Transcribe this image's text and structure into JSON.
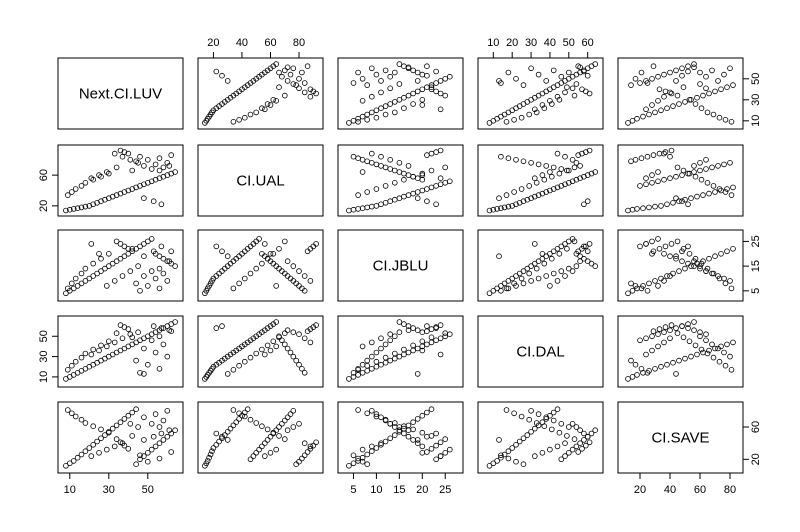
{
  "chart_data": {
    "type": "scatter",
    "variables": [
      "Next.CI.LUV",
      "CI.UAL",
      "CI.JBLU",
      "CI.DAL",
      "CI.SAVE"
    ],
    "ranges": [
      [
        6,
        66
      ],
      [
        12,
        94
      ],
      [
        2.5,
        28
      ],
      [
        4,
        66
      ],
      [
        8,
        86
      ]
    ],
    "ticks": [
      [
        10,
        30,
        50
      ],
      [
        20,
        40,
        60,
        80
      ],
      [
        5,
        10,
        15,
        20,
        25
      ],
      [
        10,
        20,
        30,
        40,
        50,
        60
      ],
      [
        20,
        40,
        60,
        80
      ]
    ],
    "axis_ticks": {
      "bottom": [
        {
          "var": 0,
          "values": [
            "10",
            "30",
            "50"
          ]
        },
        {
          "var": 2,
          "values": [
            "5",
            "10",
            "15",
            "20",
            "25"
          ]
        },
        {
          "var": 4,
          "values": [
            "20",
            "40",
            "60",
            "80"
          ]
        }
      ],
      "top": [
        {
          "var": 1,
          "values": [
            "20",
            "40",
            "60",
            "80"
          ]
        },
        {
          "var": 3,
          "values": [
            "10",
            "20",
            "30",
            "40",
            "50",
            "60"
          ]
        }
      ],
      "left": [
        {
          "var": 1,
          "values": [
            "20",
            "60"
          ]
        },
        {
          "var": 3,
          "values": [
            "10",
            "30",
            "50"
          ]
        }
      ],
      "right": [
        {
          "var": 0,
          "values": [
            "10",
            "30",
            "50"
          ]
        },
        {
          "var": 2,
          "values": [
            "5",
            "15",
            "25"
          ]
        },
        {
          "var": 4,
          "values": [
            "20",
            "60"
          ]
        }
      ]
    },
    "series": [
      {
        "name": "Next.CI.LUV",
        "values": [
          8,
          10,
          12,
          14,
          16,
          18,
          20,
          22,
          24,
          26,
          28,
          30,
          32,
          34,
          36,
          38,
          40,
          42,
          44,
          46,
          48,
          50,
          52,
          54,
          56,
          58,
          60,
          62,
          64,
          56,
          52,
          58,
          48,
          54,
          60,
          44,
          50,
          56,
          46,
          62,
          40,
          38,
          36,
          34,
          42,
          30,
          26,
          22,
          18,
          16,
          13,
          11,
          9,
          48,
          53,
          57,
          61,
          45,
          41,
          37,
          33,
          29,
          25,
          21
        ]
      },
      {
        "name": "CI.UAL",
        "values": [
          14,
          15,
          16,
          17,
          18,
          19,
          20,
          22,
          24,
          26,
          28,
          30,
          32,
          34,
          36,
          38,
          40,
          42,
          44,
          46,
          48,
          50,
          52,
          54,
          56,
          58,
          60,
          62,
          64,
          66,
          68,
          70,
          72,
          74,
          76,
          78,
          80,
          82,
          84,
          86,
          88,
          90,
          92,
          70,
          66,
          62,
          58,
          54,
          50,
          46,
          42,
          38,
          34,
          30,
          26,
          22,
          72,
          76,
          80,
          84,
          88,
          64,
          60,
          56
        ]
      },
      {
        "name": "CI.JBLU",
        "values": [
          4,
          5,
          6,
          7,
          8,
          9,
          10,
          11,
          12,
          13,
          14,
          15,
          16,
          17,
          18,
          19,
          20,
          21,
          22,
          23,
          24,
          25,
          26,
          20,
          19,
          18,
          17,
          16,
          15,
          14,
          13,
          12,
          11,
          10,
          9,
          8,
          7,
          6,
          5,
          21,
          22,
          23,
          24,
          25,
          22,
          20,
          18,
          16,
          14,
          12,
          10,
          8,
          6,
          19,
          21,
          23,
          17,
          15,
          13,
          11,
          9,
          7,
          20,
          24
        ]
      },
      {
        "name": "CI.DAL",
        "values": [
          8,
          10,
          12,
          14,
          16,
          18,
          20,
          22,
          24,
          26,
          28,
          30,
          32,
          34,
          36,
          38,
          40,
          42,
          44,
          46,
          48,
          50,
          52,
          54,
          56,
          58,
          60,
          62,
          64,
          50,
          46,
          42,
          38,
          34,
          30,
          26,
          22,
          18,
          14,
          55,
          57,
          59,
          61,
          53,
          49,
          45,
          41,
          37,
          33,
          29,
          25,
          21,
          17,
          13,
          60,
          58,
          56,
          54,
          52,
          48,
          44,
          40,
          36,
          32
        ]
      },
      {
        "name": "CI.SAVE",
        "values": [
          12,
          15,
          18,
          22,
          26,
          30,
          34,
          38,
          42,
          46,
          50,
          54,
          58,
          62,
          66,
          70,
          74,
          78,
          82,
          20,
          24,
          28,
          32,
          36,
          40,
          44,
          48,
          52,
          56,
          60,
          64,
          68,
          72,
          76,
          80,
          14,
          17,
          21,
          25,
          29,
          33,
          37,
          41,
          45,
          49,
          53,
          57,
          61,
          65,
          69,
          73,
          77,
          81,
          44,
          48,
          52,
          56,
          60,
          64,
          40,
          36,
          32,
          28,
          24
        ]
      }
    ],
    "grid": false,
    "legend": "none"
  },
  "colors": {
    "points": "#000000",
    "background": "#ffffff"
  }
}
